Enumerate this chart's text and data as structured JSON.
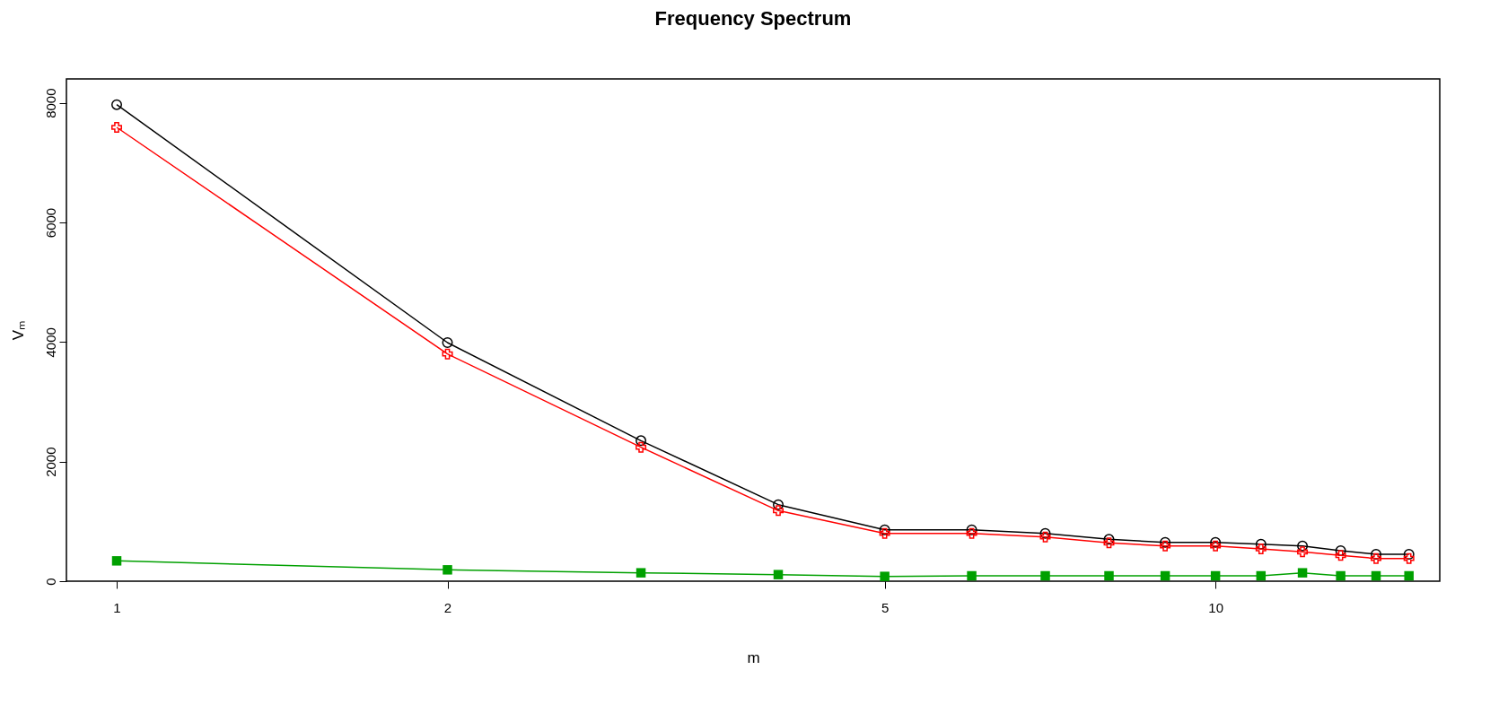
{
  "chart_data": {
    "type": "line",
    "title": "Frequency Spectrum",
    "xlabel": "m",
    "ylabel": "Vₘ",
    "log": "x",
    "x": [
      1,
      2,
      3,
      4,
      5,
      6,
      7,
      8,
      9,
      10,
      11,
      12,
      13,
      14,
      15
    ],
    "xlim": [
      0.9,
      16
    ],
    "xticks": [
      1,
      2,
      5,
      10
    ],
    "ylim": [
      0,
      8400
    ],
    "yticks": [
      0,
      2000,
      4000,
      6000,
      8000
    ],
    "series": [
      {
        "color": "#000000",
        "marker": "circle",
        "values": [
          7970,
          3990,
          2350,
          1280,
          860,
          860,
          800,
          700,
          650,
          650,
          620,
          590,
          510,
          450,
          450
        ]
      },
      {
        "color": "#ff0000",
        "marker": "cross",
        "values": [
          7590,
          3800,
          2240,
          1180,
          800,
          800,
          740,
          640,
          590,
          590,
          540,
          490,
          430,
          380,
          380
        ]
      },
      {
        "color": "#00a000",
        "marker": "square",
        "values": [
          340,
          190,
          140,
          110,
          80,
          90,
          90,
          90,
          90,
          90,
          90,
          140,
          90,
          90,
          90
        ]
      }
    ]
  }
}
